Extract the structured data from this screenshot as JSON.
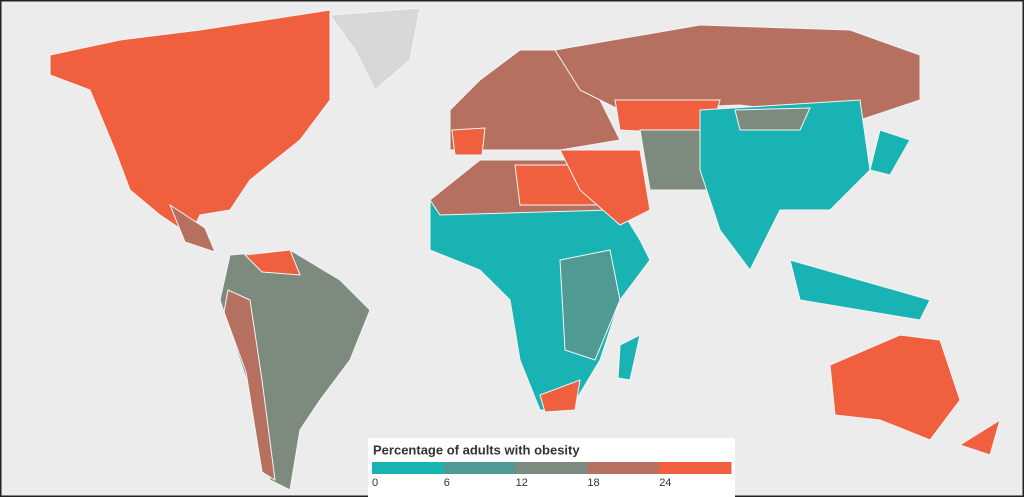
{
  "legend": {
    "title": "Percentage of adults with obesity",
    "ticks": [
      0,
      6,
      12,
      18,
      24
    ],
    "colors": [
      "#1ab3b3",
      "#4f9b94",
      "#7d8a7e",
      "#b57060",
      "#f0603f"
    ]
  }
}
